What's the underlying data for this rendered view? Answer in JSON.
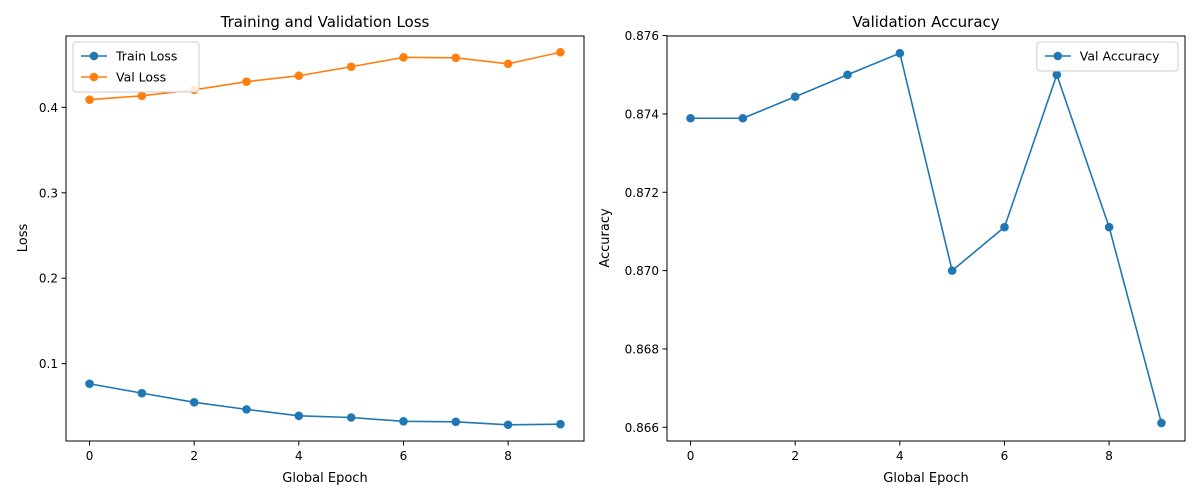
{
  "chart_data": [
    {
      "type": "line",
      "title": "Training and Validation Loss",
      "xlabel": "Global Epoch",
      "ylabel": "Loss",
      "x": [
        0,
        1,
        2,
        3,
        4,
        5,
        6,
        7,
        8,
        9
      ],
      "xticks": [
        0,
        2,
        4,
        6,
        8
      ],
      "xtick_labels": [
        "0",
        "2",
        "4",
        "6",
        "8"
      ],
      "xlim": [
        -0.45,
        9.45
      ],
      "yticks": [
        0.1,
        0.2,
        0.3,
        0.4
      ],
      "ytick_labels": [
        "0.1",
        "0.2",
        "0.3",
        "0.4"
      ],
      "ylim": [
        0.0095,
        0.4835
      ],
      "legend_position": "upper-left",
      "grid": false,
      "series": [
        {
          "name": "Train Loss",
          "color": "#1f77b4",
          "marker": "circle",
          "values": [
            0.0765,
            0.0655,
            0.0548,
            0.0465,
            0.039,
            0.037,
            0.0325,
            0.032,
            0.0285,
            0.0292
          ]
        },
        {
          "name": "Val Loss",
          "color": "#ff7f0e",
          "marker": "circle",
          "values": [
            0.409,
            0.4135,
            0.4205,
            0.43,
            0.437,
            0.4475,
            0.4585,
            0.458,
            0.451,
            0.4645
          ]
        }
      ]
    },
    {
      "type": "line",
      "title": "Validation Accuracy",
      "xlabel": "Global Epoch",
      "ylabel": "Accuracy",
      "x": [
        0,
        1,
        2,
        3,
        4,
        5,
        6,
        7,
        8,
        9
      ],
      "xticks": [
        0,
        2,
        4,
        6,
        8
      ],
      "xtick_labels": [
        "0",
        "2",
        "4",
        "6",
        "8"
      ],
      "xlim": [
        -0.45,
        9.45
      ],
      "yticks": [
        0.866,
        0.868,
        0.87,
        0.872,
        0.874,
        0.876
      ],
      "ytick_labels": [
        "0.866",
        "0.868",
        "0.870",
        "0.872",
        "0.874",
        "0.876"
      ],
      "ylim": [
        0.86565,
        0.87599
      ],
      "legend_position": "upper-right",
      "grid": false,
      "series": [
        {
          "name": "Val Accuracy",
          "color": "#1f77b4",
          "marker": "circle",
          "values": [
            0.87389,
            0.87389,
            0.87444,
            0.875,
            0.87555,
            0.87,
            0.87111,
            0.875,
            0.87111,
            0.86611
          ]
        }
      ]
    }
  ]
}
